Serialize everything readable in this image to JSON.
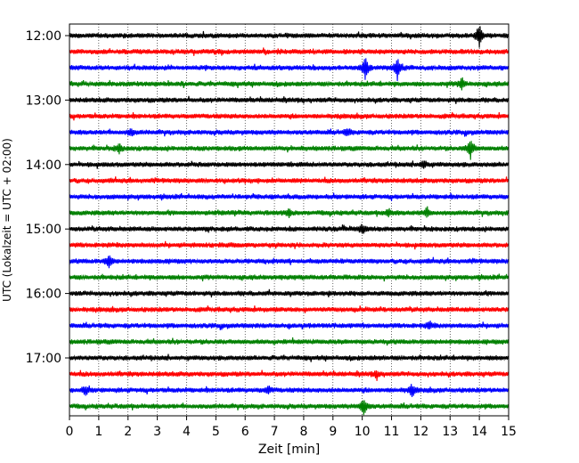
{
  "chart_data": {
    "type": "line",
    "title": "",
    "xlabel": "Zeit  [min]",
    "ylabel": "UTC (Lokalzeit = UTC + 02:00)",
    "xlim": [
      0,
      15
    ],
    "x_ticks": [
      "0",
      "1",
      "2",
      "3",
      "4",
      "5",
      "6",
      "7",
      "8",
      "9",
      "10",
      "11",
      "12",
      "13",
      "14",
      "15"
    ],
    "y_ticks": [
      "12:00",
      "13:00",
      "14:00",
      "15:00",
      "16:00",
      "17:00"
    ],
    "grid": "vertical-dotted",
    "trace_interval_minutes": 15,
    "series_colors": [
      "#000000",
      "#ff0000",
      "#0000ff",
      "#008000"
    ],
    "traces": [
      {
        "start": "12:00",
        "events": [
          {
            "t": 14.0,
            "amp": 1.0
          }
        ]
      },
      {
        "start": "12:15",
        "events": []
      },
      {
        "start": "12:30",
        "events": [
          {
            "t": 10.1,
            "amp": 0.9
          },
          {
            "t": 11.2,
            "amp": 1.0
          }
        ]
      },
      {
        "start": "12:45",
        "events": [
          {
            "t": 13.4,
            "amp": 0.5
          }
        ]
      },
      {
        "start": "13:00",
        "events": []
      },
      {
        "start": "13:15",
        "events": []
      },
      {
        "start": "13:30",
        "events": [
          {
            "t": 2.1,
            "amp": 0.3
          },
          {
            "t": 9.5,
            "amp": 0.3
          }
        ]
      },
      {
        "start": "13:45",
        "events": [
          {
            "t": 1.7,
            "amp": 0.4
          },
          {
            "t": 13.7,
            "amp": 0.9
          }
        ]
      },
      {
        "start": "14:00",
        "events": [
          {
            "t": 12.1,
            "amp": 0.4
          }
        ]
      },
      {
        "start": "14:15",
        "events": []
      },
      {
        "start": "14:30",
        "events": []
      },
      {
        "start": "14:45",
        "events": [
          {
            "t": 7.5,
            "amp": 0.3
          },
          {
            "t": 10.9,
            "amp": 0.3
          },
          {
            "t": 12.2,
            "amp": 0.4
          }
        ]
      },
      {
        "start": "15:00",
        "events": [
          {
            "t": 10.0,
            "amp": 0.4
          }
        ]
      },
      {
        "start": "15:15",
        "events": []
      },
      {
        "start": "15:30",
        "events": [
          {
            "t": 1.35,
            "amp": 0.5
          }
        ]
      },
      {
        "start": "15:45",
        "events": []
      },
      {
        "start": "16:00",
        "events": []
      },
      {
        "start": "16:15",
        "events": []
      },
      {
        "start": "16:30",
        "events": [
          {
            "t": 12.3,
            "amp": 0.3
          }
        ]
      },
      {
        "start": "16:45",
        "events": []
      },
      {
        "start": "17:00",
        "events": []
      },
      {
        "start": "17:15",
        "events": [
          {
            "t": 10.5,
            "amp": 0.3
          }
        ]
      },
      {
        "start": "17:30",
        "events": [
          {
            "t": 0.55,
            "amp": 0.4
          },
          {
            "t": 6.8,
            "amp": 0.3
          },
          {
            "t": 11.7,
            "amp": 0.5
          }
        ]
      },
      {
        "start": "17:45",
        "events": [
          {
            "t": 10.05,
            "amp": 0.9
          }
        ]
      }
    ]
  }
}
